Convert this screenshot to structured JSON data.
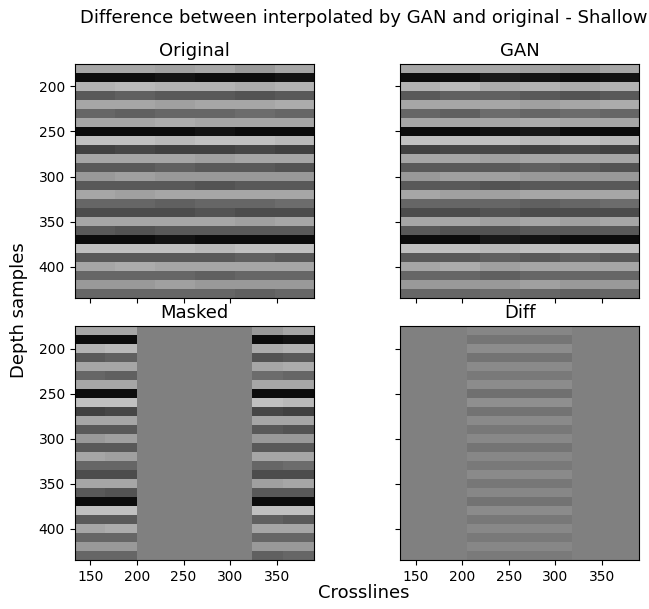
{
  "title": "Difference between interpolated by GAN and original - Shallow",
  "x_label": "Crosslines",
  "y_label": "Depth samples",
  "chart_data": [
    {
      "type": "heatmap",
      "title": "Original",
      "color": "gray",
      "color_range": [
        -1,
        1
      ],
      "xlim": [
        133,
        390
      ],
      "ylim": [
        435,
        175
      ],
      "xticks": [
        150,
        200,
        250,
        300,
        350
      ],
      "yticks": [
        200,
        250,
        300,
        350,
        400
      ],
      "x_edges": [
        133,
        176,
        219,
        262,
        305,
        348,
        390
      ],
      "y_edges": [
        175,
        185,
        195,
        205,
        215,
        225,
        235,
        245,
        255,
        265,
        275,
        285,
        295,
        305,
        315,
        325,
        335,
        345,
        355,
        365,
        375,
        385,
        395,
        405,
        415,
        425,
        435
      ],
      "cells": [
        [
          0.3,
          0.3,
          0.25,
          0.3,
          0.2,
          0.3
        ],
        [
          -0.9,
          -0.9,
          -0.85,
          -0.9,
          -0.9,
          -0.85
        ],
        [
          0.4,
          0.45,
          0.4,
          0.4,
          0.35,
          0.4
        ],
        [
          -0.3,
          -0.25,
          -0.3,
          -0.3,
          -0.35,
          -0.3
        ],
        [
          0.3,
          0.3,
          0.25,
          0.3,
          0.3,
          0.35
        ],
        [
          -0.2,
          -0.25,
          -0.2,
          -0.2,
          -0.15,
          -0.2
        ],
        [
          0.3,
          0.3,
          0.35,
          0.3,
          0.3,
          0.3
        ],
        [
          -0.9,
          -0.9,
          -0.9,
          -0.85,
          -0.9,
          -0.9
        ],
        [
          0.5,
          0.5,
          0.45,
          0.5,
          0.5,
          0.45
        ],
        [
          -0.5,
          -0.45,
          -0.5,
          -0.5,
          -0.45,
          -0.5
        ],
        [
          0.3,
          0.3,
          0.3,
          0.25,
          0.3,
          0.3
        ],
        [
          -0.3,
          -0.3,
          -0.25,
          -0.3,
          -0.3,
          -0.35
        ],
        [
          0.2,
          0.25,
          0.2,
          0.2,
          0.2,
          0.2
        ],
        [
          -0.3,
          -0.3,
          -0.3,
          -0.35,
          -0.3,
          -0.3
        ],
        [
          0.3,
          0.25,
          0.3,
          0.3,
          0.3,
          0.3
        ],
        [
          -0.2,
          -0.2,
          -0.25,
          -0.2,
          -0.2,
          -0.15
        ],
        [
          -0.4,
          -0.4,
          -0.4,
          -0.35,
          -0.4,
          -0.4
        ],
        [
          0.3,
          0.3,
          0.3,
          0.3,
          0.25,
          0.3
        ],
        [
          -0.3,
          -0.35,
          -0.3,
          -0.3,
          -0.3,
          -0.3
        ],
        [
          -0.9,
          -0.9,
          -0.85,
          -0.9,
          -0.9,
          -0.9
        ],
        [
          0.5,
          0.5,
          0.5,
          0.45,
          0.5,
          0.5
        ],
        [
          -0.3,
          -0.3,
          -0.3,
          -0.3,
          -0.25,
          -0.3
        ],
        [
          0.3,
          0.35,
          0.3,
          0.3,
          0.3,
          0.3
        ],
        [
          -0.2,
          -0.2,
          -0.2,
          -0.25,
          -0.2,
          -0.2
        ],
        [
          0.2,
          0.2,
          0.25,
          0.2,
          0.2,
          0.2
        ],
        [
          -0.2,
          -0.2,
          -0.2,
          -0.2,
          -0.25,
          -0.2
        ]
      ]
    },
    {
      "type": "heatmap",
      "title": "GAN",
      "color": "gray",
      "color_range": [
        -1,
        1
      ],
      "xlim": [
        133,
        390
      ],
      "ylim": [
        435,
        175
      ],
      "xticks": [
        150,
        200,
        250,
        300,
        350
      ],
      "yticks": [
        200,
        250,
        300,
        350,
        400
      ],
      "x_edges": [
        133,
        176,
        219,
        262,
        305,
        348,
        390
      ],
      "y_edges": [
        175,
        185,
        195,
        205,
        215,
        225,
        235,
        245,
        255,
        265,
        275,
        285,
        295,
        305,
        315,
        325,
        335,
        345,
        355,
        365,
        375,
        385,
        395,
        405,
        415,
        425,
        435
      ],
      "cells": [
        [
          0.3,
          0.3,
          0.3,
          0.25,
          0.2,
          0.3
        ],
        [
          -0.9,
          -0.9,
          -0.8,
          -0.85,
          -0.9,
          -0.85
        ],
        [
          0.4,
          0.45,
          0.35,
          0.4,
          0.35,
          0.4
        ],
        [
          -0.3,
          -0.25,
          -0.25,
          -0.3,
          -0.35,
          -0.3
        ],
        [
          0.3,
          0.3,
          0.3,
          0.25,
          0.3,
          0.35
        ],
        [
          -0.2,
          -0.25,
          -0.15,
          -0.2,
          -0.15,
          -0.2
        ],
        [
          0.3,
          0.3,
          0.3,
          0.35,
          0.3,
          0.3
        ],
        [
          -0.9,
          -0.9,
          -0.85,
          -0.8,
          -0.9,
          -0.9
        ],
        [
          0.5,
          0.5,
          0.5,
          0.45,
          0.5,
          0.45
        ],
        [
          -0.5,
          -0.45,
          -0.45,
          -0.5,
          -0.45,
          -0.5
        ],
        [
          0.3,
          0.3,
          0.25,
          0.3,
          0.3,
          0.3
        ],
        [
          -0.3,
          -0.3,
          -0.3,
          -0.25,
          -0.3,
          -0.35
        ],
        [
          0.2,
          0.25,
          0.25,
          0.2,
          0.2,
          0.2
        ],
        [
          -0.3,
          -0.3,
          -0.35,
          -0.3,
          -0.3,
          -0.3
        ],
        [
          0.3,
          0.25,
          0.25,
          0.3,
          0.3,
          0.3
        ],
        [
          -0.2,
          -0.2,
          -0.2,
          -0.25,
          -0.2,
          -0.15
        ],
        [
          -0.4,
          -0.4,
          -0.35,
          -0.4,
          -0.4,
          -0.4
        ],
        [
          0.3,
          0.3,
          0.25,
          0.3,
          0.25,
          0.3
        ],
        [
          -0.3,
          -0.35,
          -0.35,
          -0.3,
          -0.3,
          -0.3
        ],
        [
          -0.9,
          -0.9,
          -0.8,
          -0.85,
          -0.9,
          -0.9
        ],
        [
          0.5,
          0.5,
          0.45,
          0.5,
          0.5,
          0.5
        ],
        [
          -0.3,
          -0.3,
          -0.25,
          -0.3,
          -0.25,
          -0.3
        ],
        [
          0.3,
          0.35,
          0.25,
          0.3,
          0.3,
          0.3
        ],
        [
          -0.2,
          -0.2,
          -0.25,
          -0.2,
          -0.2,
          -0.2
        ],
        [
          0.2,
          0.2,
          0.2,
          0.25,
          0.2,
          0.2
        ],
        [
          -0.2,
          -0.2,
          -0.15,
          -0.2,
          -0.25,
          -0.2
        ]
      ]
    },
    {
      "type": "heatmap",
      "title": "Masked",
      "color": "gray",
      "color_range": [
        -1,
        1
      ],
      "xlim": [
        133,
        390
      ],
      "ylim": [
        435,
        175
      ],
      "xticks": [
        150,
        200,
        250,
        300,
        350
      ],
      "yticks": [
        200,
        250,
        300,
        350,
        400
      ],
      "x_edges": [
        133,
        166,
        200,
        323,
        357,
        390
      ],
      "y_edges": [
        175,
        185,
        195,
        205,
        215,
        225,
        235,
        245,
        255,
        265,
        275,
        285,
        295,
        305,
        315,
        325,
        335,
        345,
        355,
        365,
        375,
        385,
        395,
        405,
        415,
        425,
        435
      ],
      "cells": [
        [
          0.3,
          0.3,
          0,
          0.2,
          0.3
        ],
        [
          -0.9,
          -0.9,
          0,
          -0.9,
          -0.85
        ],
        [
          0.4,
          0.45,
          0,
          0.35,
          0.4
        ],
        [
          -0.3,
          -0.25,
          0,
          -0.35,
          -0.3
        ],
        [
          0.3,
          0.3,
          0,
          0.3,
          0.35
        ],
        [
          -0.2,
          -0.25,
          0,
          -0.15,
          -0.2
        ],
        [
          0.3,
          0.3,
          0,
          0.3,
          0.3
        ],
        [
          -0.9,
          -0.9,
          0,
          -0.9,
          -0.9
        ],
        [
          0.5,
          0.5,
          0,
          0.5,
          0.45
        ],
        [
          -0.5,
          -0.45,
          0,
          -0.45,
          -0.5
        ],
        [
          0.3,
          0.3,
          0,
          0.3,
          0.3
        ],
        [
          -0.3,
          -0.3,
          0,
          -0.3,
          -0.35
        ],
        [
          0.2,
          0.25,
          0,
          0.2,
          0.2
        ],
        [
          -0.3,
          -0.3,
          0,
          -0.3,
          -0.3
        ],
        [
          0.3,
          0.25,
          0,
          0.3,
          0.3
        ],
        [
          -0.2,
          -0.2,
          0,
          -0.2,
          -0.15
        ],
        [
          -0.4,
          -0.4,
          0,
          -0.4,
          -0.4
        ],
        [
          0.3,
          0.3,
          0,
          0.25,
          0.3
        ],
        [
          -0.3,
          -0.35,
          0,
          -0.3,
          -0.3
        ],
        [
          -0.9,
          -0.9,
          0,
          -0.9,
          -0.9
        ],
        [
          0.5,
          0.5,
          0,
          0.5,
          0.5
        ],
        [
          -0.3,
          -0.3,
          0,
          -0.25,
          -0.3
        ],
        [
          0.3,
          0.35,
          0,
          0.3,
          0.3
        ],
        [
          -0.2,
          -0.2,
          0,
          -0.2,
          -0.2
        ],
        [
          0.2,
          0.2,
          0,
          0.2,
          0.2
        ],
        [
          -0.2,
          -0.2,
          0,
          -0.25,
          -0.2
        ]
      ]
    },
    {
      "type": "heatmap",
      "title": "Diff",
      "color": "gray",
      "color_range": [
        -1,
        1
      ],
      "xlim": [
        133,
        390
      ],
      "ylim": [
        435,
        175
      ],
      "xticks": [
        150,
        200,
        250,
        300,
        350
      ],
      "yticks": [
        200,
        250,
        300,
        350,
        400
      ],
      "x_edges": [
        133,
        205,
        318,
        390
      ],
      "y_edges": [
        175,
        185,
        195,
        205,
        215,
        225,
        235,
        245,
        255,
        265,
        275,
        285,
        295,
        305,
        315,
        325,
        335,
        345,
        355,
        365,
        375,
        385,
        395,
        405,
        415,
        425,
        435
      ],
      "cells": [
        [
          0,
          0.05,
          0
        ],
        [
          0,
          -0.08,
          0
        ],
        [
          0,
          0.1,
          0
        ],
        [
          0,
          -0.1,
          0
        ],
        [
          0,
          0.08,
          0
        ],
        [
          0,
          -0.05,
          0
        ],
        [
          0,
          0.1,
          0
        ],
        [
          0,
          -0.12,
          0
        ],
        [
          0,
          0.12,
          0
        ],
        [
          0,
          -0.1,
          0
        ],
        [
          0,
          0.08,
          0
        ],
        [
          0,
          -0.06,
          0
        ],
        [
          0,
          0.07,
          0
        ],
        [
          0,
          -0.09,
          0
        ],
        [
          0,
          0.06,
          0
        ],
        [
          0,
          -0.05,
          0
        ],
        [
          0,
          0.08,
          0
        ],
        [
          0,
          -0.07,
          0
        ],
        [
          0,
          0.06,
          0
        ],
        [
          0,
          -0.1,
          0
        ],
        [
          0,
          0.09,
          0
        ],
        [
          0,
          -0.06,
          0
        ],
        [
          0,
          0.07,
          0
        ],
        [
          0,
          -0.05,
          0
        ],
        [
          0,
          0.06,
          0
        ],
        [
          0,
          -0.04,
          0
        ]
      ]
    }
  ]
}
